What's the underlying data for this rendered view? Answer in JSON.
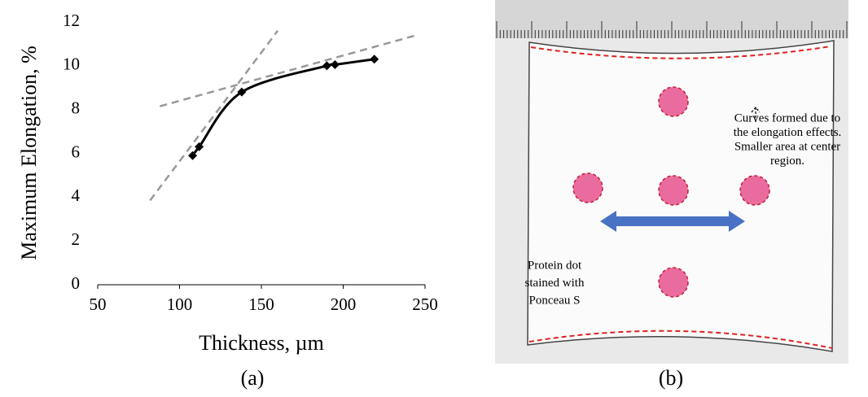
{
  "chart_data": {
    "type": "line",
    "xlabel": "Thickness, µm",
    "ylabel": "Maximum Elongation, %",
    "x": [
      108,
      112,
      138,
      190,
      195,
      219
    ],
    "series": [
      {
        "color": "#000000",
        "values": [
          5.9,
          6.3,
          8.8,
          10.0,
          10.05,
          10.3
        ]
      }
    ],
    "trend_lines": [
      {
        "color": "#999999",
        "x": [
          82,
          160
        ],
        "y": [
          3.85,
          11.6
        ]
      },
      {
        "color": "#999999",
        "x": [
          88,
          245
        ],
        "y": [
          8.15,
          11.4
        ]
      }
    ],
    "xlim": [
      50,
      250
    ],
    "xticks": [
      50,
      100,
      150,
      200,
      250
    ],
    "ylim": [
      0,
      12
    ],
    "yticks": [
      0,
      2,
      4,
      6,
      8,
      10,
      12
    ],
    "caption": "(a)"
  },
  "panel_b": {
    "caption": "(b)",
    "annotation": [
      "Curves formed due to",
      "the elongation effects.",
      "Smaller area at center",
      "region."
    ],
    "dot_label": [
      "Protein dot",
      "stained with",
      "Ponceau S"
    ]
  }
}
